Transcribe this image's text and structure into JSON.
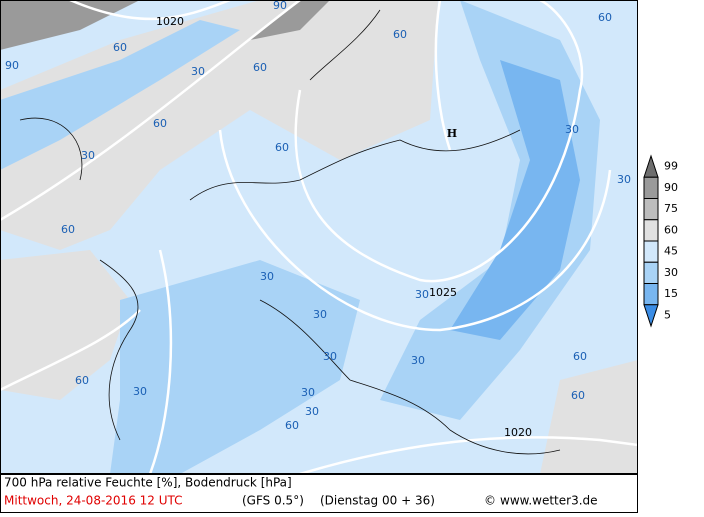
{
  "legend": {
    "levels": [
      {
        "label": "99",
        "color": "#6e6e6e"
      },
      {
        "label": "90",
        "color": "#9a9a9a"
      },
      {
        "label": "75",
        "color": "#bdbdbd"
      },
      {
        "label": "60",
        "color": "#e1e1e1"
      },
      {
        "label": "45",
        "color": "#d2e8fb"
      },
      {
        "label": "30",
        "color": "#a9d3f6"
      },
      {
        "label": "15",
        "color": "#78b6f0"
      },
      {
        "label": "5",
        "color": "#3b8de6"
      }
    ]
  },
  "map": {
    "labels": [
      "1020",
      "60",
      "90",
      "90",
      "60",
      "30",
      "60",
      "60",
      "30",
      "60",
      "H",
      "30",
      "60",
      "30",
      "60",
      "30",
      "1025",
      "30",
      "30",
      "30",
      "30",
      "60",
      "30",
      "60",
      "60",
      "1020",
      "30",
      "60",
      "30"
    ]
  },
  "footer": {
    "title": "700 hPa relative Feuchte [%], Bodendruck [hPa]",
    "date": "Mittwoch, 24-08-2016  12 UTC",
    "model": "(GFS 0.5°)",
    "run": "(Dienstag 00 + 36)",
    "copyright": "©",
    "site": "www.wetter3.de"
  }
}
